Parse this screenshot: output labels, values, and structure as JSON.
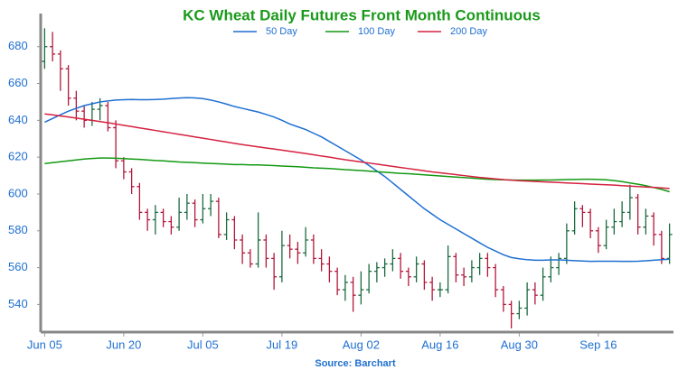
{
  "chart_data": {
    "type": "ohlc",
    "title": "KC Wheat Daily Futures Front Month Continuous",
    "source": "Source: Barchart",
    "title_color": "#1a9a1a",
    "up_color": "#1b6b3f",
    "down_color": "#b3173a",
    "categories": [
      "Jun 05",
      null,
      null,
      null,
      null,
      null,
      null,
      null,
      null,
      null,
      "Jun 20",
      null,
      null,
      null,
      null,
      null,
      null,
      null,
      null,
      null,
      "Jul 05",
      null,
      null,
      null,
      null,
      null,
      null,
      null,
      null,
      null,
      "Jul 19",
      null,
      null,
      null,
      null,
      null,
      null,
      null,
      null,
      null,
      "Aug 02",
      null,
      null,
      null,
      null,
      null,
      null,
      null,
      null,
      null,
      "Aug 16",
      null,
      null,
      null,
      null,
      null,
      null,
      null,
      null,
      null,
      "Aug 30",
      null,
      null,
      null,
      null,
      null,
      null,
      null,
      null,
      null,
      "Sep 16",
      null,
      null,
      null,
      null,
      null,
      null,
      null,
      null,
      null
    ],
    "open": [
      672,
      680,
      676,
      668,
      652,
      645,
      640,
      646,
      648,
      636,
      618,
      612,
      604,
      590,
      586,
      590,
      585,
      582,
      590,
      595,
      586,
      592,
      596,
      578,
      586,
      575,
      568,
      562,
      575,
      565,
      555,
      572,
      570,
      568,
      575,
      565,
      562,
      558,
      548,
      552,
      545,
      548,
      558,
      560,
      562,
      565,
      558,
      555,
      562,
      552,
      548,
      548,
      566,
      556,
      555,
      560,
      565,
      560,
      548,
      540,
      535,
      538,
      548,
      545,
      555,
      560,
      565,
      580,
      592,
      590,
      580,
      572,
      582,
      585,
      590,
      598,
      582,
      588,
      578,
      565
    ],
    "high": [
      690,
      688,
      678,
      670,
      656,
      648,
      650,
      652,
      650,
      640,
      620,
      614,
      606,
      592,
      594,
      592,
      588,
      598,
      600,
      597,
      600,
      600,
      598,
      590,
      588,
      578,
      570,
      590,
      578,
      568,
      580,
      578,
      574,
      582,
      578,
      570,
      566,
      560,
      556,
      555,
      558,
      562,
      563,
      565,
      570,
      568,
      560,
      566,
      564,
      555,
      552,
      572,
      568,
      560,
      564,
      568,
      568,
      562,
      550,
      542,
      542,
      552,
      552,
      560,
      566,
      568,
      584,
      596,
      594,
      592,
      582,
      586,
      592,
      596,
      605,
      600,
      592,
      590,
      580,
      584
    ],
    "low": [
      668,
      672,
      656,
      648,
      640,
      636,
      637,
      640,
      634,
      614,
      608,
      600,
      586,
      580,
      578,
      582,
      578,
      580,
      586,
      582,
      584,
      588,
      576,
      575,
      570,
      562,
      560,
      560,
      560,
      548,
      552,
      565,
      562,
      566,
      562,
      558,
      552,
      545,
      542,
      536,
      540,
      546,
      552,
      555,
      558,
      554,
      550,
      552,
      548,
      542,
      544,
      546,
      552,
      550,
      552,
      556,
      555,
      544,
      536,
      527,
      532,
      534,
      540,
      542,
      552,
      556,
      562,
      578,
      582,
      576,
      568,
      570,
      578,
      582,
      586,
      578,
      578,
      572,
      562,
      562
    ],
    "close": [
      680,
      676,
      668,
      652,
      645,
      640,
      646,
      648,
      636,
      618,
      612,
      604,
      590,
      586,
      590,
      585,
      582,
      590,
      595,
      586,
      592,
      596,
      578,
      586,
      575,
      568,
      562,
      575,
      565,
      555,
      572,
      570,
      568,
      575,
      565,
      562,
      558,
      548,
      552,
      545,
      548,
      558,
      560,
      562,
      565,
      558,
      555,
      562,
      552,
      548,
      548,
      566,
      556,
      555,
      560,
      565,
      560,
      548,
      540,
      535,
      538,
      548,
      545,
      555,
      560,
      565,
      580,
      592,
      590,
      580,
      572,
      582,
      585,
      590,
      598,
      582,
      588,
      578,
      565,
      578
    ],
    "series": [
      {
        "name": "50 Day",
        "color": "#1f6fd1",
        "values": [
          639,
          641,
          643,
          645,
          646.5,
          648,
          649,
          650,
          650.5,
          651,
          651.2,
          651.3,
          651.2,
          651.2,
          651.3,
          651.5,
          651.8,
          652.1,
          652.3,
          652.2,
          651.8,
          651,
          650,
          648.8,
          647.5,
          646.5,
          645.5,
          644.5,
          643.2,
          641.8,
          640,
          638,
          636.5,
          635,
          633,
          631,
          628.5,
          626,
          623.5,
          621,
          618.5,
          615.5,
          612.5,
          609.5,
          606,
          602.5,
          599,
          595.5,
          592,
          589,
          586,
          583.5,
          581,
          578.5,
          576,
          573.5,
          571,
          569,
          567,
          565.5,
          564.8,
          564.3,
          564,
          564,
          564.2,
          564.2,
          564,
          563.8,
          563.6,
          563.4,
          563.5,
          563.5,
          563.5,
          563.4,
          563.4,
          563.5,
          563.7,
          564,
          564.3,
          564.6
        ]
      },
      {
        "name": "100 Day",
        "color": "#129912",
        "values": [
          616.5,
          617,
          617.5,
          618,
          618.5,
          619,
          619.3,
          619.5,
          619.5,
          619.4,
          619.2,
          619,
          618.8,
          618.5,
          618.2,
          618,
          617.7,
          617.4,
          617.2,
          617,
          616.8,
          616.6,
          616.4,
          616.2,
          616,
          616,
          615.8,
          615.8,
          615.6,
          615.4,
          615.2,
          615,
          614.8,
          614.5,
          614.2,
          614,
          613.8,
          613.5,
          613.2,
          613,
          612.7,
          612.4,
          612.1,
          611.8,
          611.5,
          611.2,
          611,
          610.7,
          610.4,
          610.1,
          609.8,
          609.5,
          609.2,
          608.9,
          608.6,
          608.3,
          608,
          607.8,
          607.7,
          607.6,
          607.5,
          607.5,
          607.5,
          607.6,
          607.6,
          607.7,
          607.8,
          607.9,
          608,
          608,
          607.9,
          607.7,
          607.3,
          606.7,
          606,
          605.3,
          604.5,
          603.5,
          602.5,
          601.2
        ]
      },
      {
        "name": "200 Day",
        "color": "#d4213f",
        "values": [
          643.5,
          643,
          642.4,
          641.8,
          641.2,
          640.6,
          640,
          639.3,
          638.7,
          638,
          637.3,
          636.6,
          635.9,
          635.2,
          634.5,
          633.8,
          633.1,
          632.4,
          631.7,
          631,
          630.3,
          629.6,
          628.9,
          628.2,
          627.5,
          626.8,
          626.2,
          625.6,
          625,
          624.4,
          623.8,
          623.2,
          622.6,
          622,
          621.3,
          620.6,
          620,
          619.3,
          618.6,
          618,
          617.4,
          616.8,
          616.2,
          615.6,
          615,
          614.4,
          613.8,
          613.2,
          612.6,
          612,
          611.5,
          611,
          610.5,
          610,
          609.5,
          609,
          608.6,
          608.2,
          607.8,
          607.5,
          607.2,
          607,
          606.8,
          606.6,
          606.4,
          606.2,
          606,
          605.8,
          605.6,
          605.4,
          605.2,
          605,
          604.8,
          604.5,
          604.3,
          604,
          603.8,
          603.6,
          603.3,
          603
        ]
      }
    ],
    "ylim": [
      525,
      698
    ],
    "yticks": [
      540,
      560,
      580,
      600,
      620,
      640,
      660,
      680
    ]
  }
}
